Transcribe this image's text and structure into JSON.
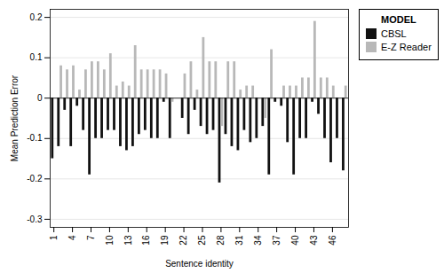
{
  "chart_data": {
    "type": "bar",
    "xlabel": "Sentence identity",
    "ylabel": "Mean Prediction Error",
    "legend_title": "MODEL",
    "categories": [
      "1",
      null,
      null,
      "4",
      null,
      null,
      "7",
      null,
      null,
      "10",
      null,
      null,
      "13",
      null,
      null,
      "16",
      null,
      null,
      "19",
      null,
      null,
      "22",
      null,
      null,
      "25",
      null,
      null,
      "28",
      null,
      null,
      "31",
      null,
      null,
      "34",
      null,
      null,
      "37",
      null,
      null,
      "40",
      null,
      null,
      "43",
      null,
      null,
      "46",
      null,
      null
    ],
    "series": [
      {
        "name": "CBSL",
        "color": "#111111",
        "values": [
          -0.15,
          -0.12,
          -0.03,
          -0.12,
          -0.02,
          -0.08,
          -0.19,
          -0.1,
          -0.1,
          -0.08,
          -0.08,
          -0.12,
          -0.13,
          -0.12,
          -0.09,
          -0.08,
          -0.1,
          -0.1,
          -0.01,
          -0.1,
          0.0,
          -0.05,
          -0.09,
          -0.03,
          -0.07,
          -0.09,
          -0.08,
          -0.21,
          -0.09,
          -0.12,
          -0.13,
          -0.08,
          -0.11,
          -0.1,
          -0.07,
          -0.19,
          -0.01,
          -0.02,
          -0.11,
          -0.19,
          -0.1,
          -0.1,
          -0.01,
          -0.04,
          -0.1,
          -0.16,
          -0.1,
          -0.18
        ]
      },
      {
        "name": "E-Z Reader",
        "color": "#b8b8b8",
        "values": [
          0.0,
          0.08,
          0.07,
          0.08,
          0.02,
          0.07,
          0.09,
          0.09,
          0.07,
          0.11,
          0.03,
          0.04,
          0.03,
          0.13,
          0.07,
          0.07,
          0.07,
          0.07,
          0.06,
          -0.01,
          0.0,
          0.06,
          0.09,
          0.02,
          0.15,
          0.09,
          0.09,
          -0.07,
          0.09,
          0.09,
          0.02,
          0.03,
          0.03,
          0.0,
          -0.05,
          0.12,
          0.0,
          0.03,
          0.03,
          0.03,
          0.05,
          0.05,
          0.19,
          0.05,
          0.05,
          0.03,
          0.0,
          0.03
        ]
      }
    ],
    "ylim": [
      -0.32,
      0.22
    ],
    "yticks": [
      -0.3,
      -0.2,
      -0.1,
      0.0,
      0.1,
      0.2
    ],
    "grid": true,
    "legend": "right"
  }
}
